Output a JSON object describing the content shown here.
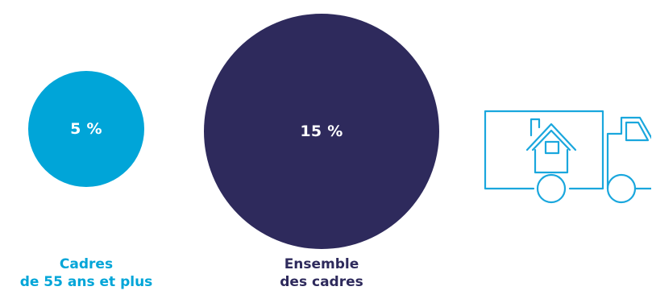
{
  "chart_data": {
    "type": "bubble",
    "unit": "%",
    "categories": [
      "Cadres de 55 ans et plus",
      "Ensemble des cadres"
    ],
    "values": [
      5,
      15
    ],
    "value_labels": [
      "5 %",
      "15 %"
    ],
    "colors": [
      "#00a5d8",
      "#2e2a5c"
    ],
    "label_lines": [
      [
        "Cadres",
        "de 55 ans et plus"
      ],
      [
        "Ensemble",
        "des cadres"
      ]
    ]
  },
  "icons": {
    "pictogram": "moving-truck-house-icon",
    "pictogram_color": "#1aa7dd"
  }
}
